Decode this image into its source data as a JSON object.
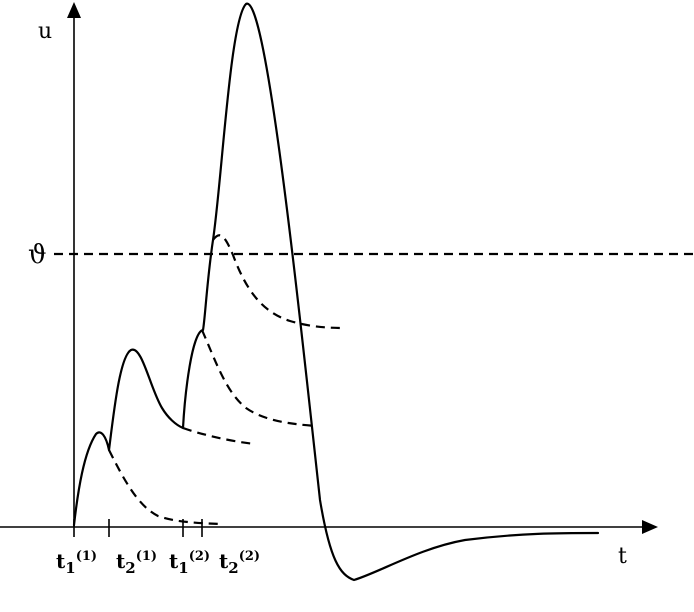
{
  "axes": {
    "y_label": "u",
    "x_label": "t"
  },
  "threshold": {
    "symbol": "ϑ"
  },
  "ticks": [
    {
      "base": "t",
      "sub": "1",
      "sup": "(1)"
    },
    {
      "base": "t",
      "sub": "2",
      "sup": "(1)"
    },
    {
      "base": "t",
      "sub": "1",
      "sup": "(2)"
    },
    {
      "base": "t",
      "sub": "2",
      "sup": "(2)"
    }
  ]
}
